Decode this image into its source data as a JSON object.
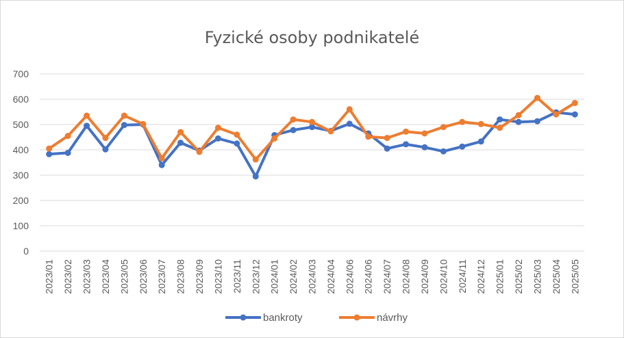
{
  "chart_data": {
    "type": "line",
    "title": "Fyzické osoby podnikatelé",
    "xlabel": "",
    "ylabel": "",
    "ylim": [
      0,
      700
    ],
    "yticks": [
      0,
      100,
      200,
      300,
      400,
      500,
      600,
      700
    ],
    "grid": true,
    "legend_position": "bottom",
    "categories": [
      "2023/01",
      "2023/02",
      "2023/03",
      "2023/04",
      "2023/05",
      "2023/06",
      "2023/07",
      "2023/08",
      "2023/09",
      "2023/10",
      "2023/11",
      "2023/12",
      "2024/01",
      "2024/02",
      "2024/03",
      "2024/04",
      "2024/06",
      "2024/06",
      "2024/07",
      "2024/08",
      "2024/09",
      "2024/10",
      "2024/11",
      "2024/12",
      "2025/01",
      "2025/02",
      "2025/03",
      "2025/04",
      "2025/05"
    ],
    "series": [
      {
        "name": "bankroty",
        "color": "#4472c4",
        "values": [
          383,
          388,
          495,
          402,
          498,
          500,
          340,
          428,
          397,
          445,
          425,
          295,
          458,
          478,
          490,
          475,
          503,
          465,
          405,
          422,
          410,
          394,
          413,
          433,
          520,
          510,
          513,
          548,
          540
        ]
      },
      {
        "name": "návrhy",
        "color": "#ed7d31",
        "values": [
          405,
          455,
          535,
          447,
          535,
          502,
          367,
          470,
          392,
          487,
          460,
          362,
          445,
          520,
          510,
          473,
          560,
          452,
          447,
          472,
          465,
          490,
          510,
          502,
          487,
          537,
          605,
          540,
          585
        ]
      }
    ]
  }
}
